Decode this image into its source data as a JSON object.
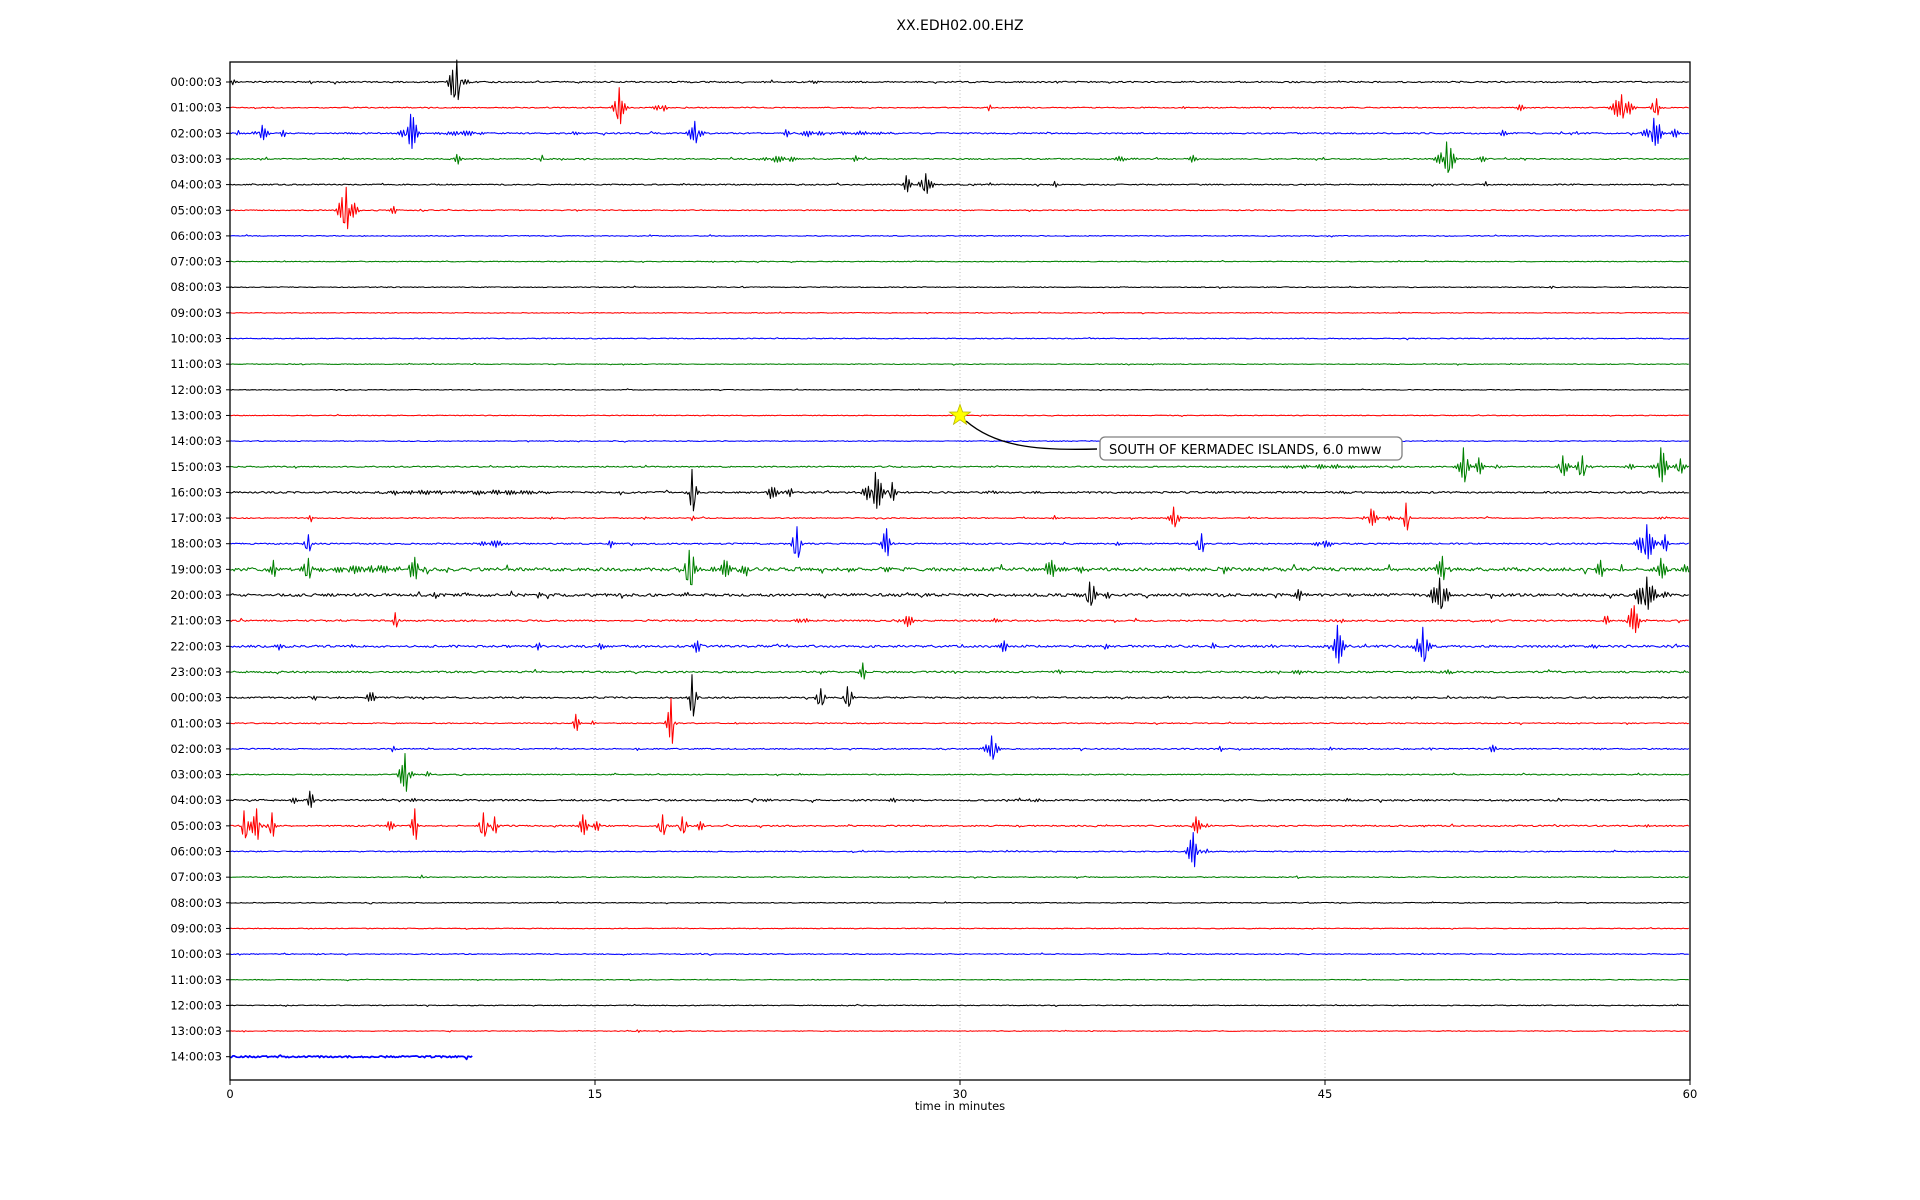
{
  "title": "XX.EDH02.00.EHZ",
  "x_axis": {
    "label": "time in minutes",
    "ticks": [
      0,
      15,
      30,
      45,
      60
    ],
    "range": [
      0,
      60
    ],
    "gridlines_minutes": [
      15,
      30,
      45
    ]
  },
  "annotation": {
    "text": "SOUTH OF KERMADEC ISLANDS, 6.0 mww",
    "marker": "star",
    "marker_color": "#ffff00",
    "row_index": 13,
    "row_label": "13:00:03",
    "minute": 30
  },
  "colors": {
    "trace_cycle": [
      "#000000",
      "#ff0000",
      "#0000ff",
      "#008000"
    ],
    "gridline": "#b0b0b0",
    "annotation_border": "#808080",
    "annotation_fill": "#ffffff",
    "background": "#ffffff"
  },
  "chart_data": {
    "type": "line",
    "plot_kind": "seismogram-helicorder",
    "station_code": "XX.EDH02.00.EHZ",
    "minutes_per_row": 60,
    "grid": "vertical-dotted",
    "legend": "none",
    "rows": [
      {
        "label": "00:00:03",
        "color": "#000000",
        "noise": 0.7,
        "events": [
          [
            0.15,
            5,
            0.08
          ],
          [
            3.3,
            2,
            0.1
          ],
          [
            9.3,
            22,
            0.45
          ],
          [
            24,
            1.5,
            0.3
          ]
        ]
      },
      {
        "label": "01:00:03",
        "color": "#ff0000",
        "noise": 0.5,
        "events": [
          [
            16.0,
            20,
            0.28
          ],
          [
            17.7,
            7,
            0.3
          ],
          [
            18.7,
            3,
            0.1
          ],
          [
            31.2,
            4,
            0.12
          ],
          [
            39.2,
            3,
            0.1
          ],
          [
            53.0,
            4,
            0.2
          ],
          [
            57.2,
            13,
            0.55
          ],
          [
            58.6,
            9,
            0.25
          ]
        ]
      },
      {
        "label": "02:00:03",
        "color": "#0000ff",
        "noise": 0.7,
        "events": [
          [
            0.3,
            6,
            0.12
          ],
          [
            1.3,
            8,
            0.35
          ],
          [
            2.2,
            5,
            0.15
          ],
          [
            7.4,
            19,
            0.45
          ],
          [
            9.5,
            3,
            1.2
          ],
          [
            14.2,
            3,
            0.1
          ],
          [
            19.1,
            12,
            0.35
          ],
          [
            22.9,
            5,
            0.15
          ],
          [
            23.9,
            4,
            0.7
          ],
          [
            26,
            2.5,
            1.5
          ],
          [
            52.3,
            4,
            0.2
          ],
          [
            55.4,
            3,
            0.15
          ],
          [
            58.5,
            15,
            0.45
          ],
          [
            59.4,
            6,
            0.2
          ]
        ]
      },
      {
        "label": "03:00:03",
        "color": "#008000",
        "noise": 0.6,
        "events": [
          [
            1.3,
            2,
            0.1
          ],
          [
            9.35,
            7,
            0.18
          ],
          [
            12.8,
            4,
            0.1
          ],
          [
            22.6,
            4,
            1.0
          ],
          [
            25.7,
            4,
            0.15
          ],
          [
            36.6,
            2.5,
            0.6
          ],
          [
            39.6,
            5,
            0.25
          ],
          [
            50.0,
            17,
            0.45
          ],
          [
            51.5,
            4,
            0.2
          ]
        ]
      },
      {
        "label": "04:00:03",
        "color": "#000000",
        "noise": 0.6,
        "events": [
          [
            27.8,
            9,
            0.25
          ],
          [
            28.6,
            11,
            0.35
          ],
          [
            33.9,
            4,
            0.12
          ],
          [
            51.6,
            3,
            0.1
          ],
          [
            55.2,
            2,
            0.1
          ]
        ]
      },
      {
        "label": "05:00:03",
        "color": "#ff0000",
        "noise": 0.5,
        "events": [
          [
            4.8,
            23,
            0.45
          ],
          [
            6.7,
            5,
            0.18
          ],
          [
            7.8,
            3,
            0.1
          ]
        ]
      },
      {
        "label": "06:00:03",
        "color": "#0000ff",
        "noise": 0.4,
        "events": []
      },
      {
        "label": "07:00:03",
        "color": "#008000",
        "noise": 0.35,
        "events": []
      },
      {
        "label": "08:00:03",
        "color": "#000000",
        "noise": 0.4,
        "events": [
          [
            54.3,
            2,
            0.08
          ]
        ]
      },
      {
        "label": "09:00:03",
        "color": "#ff0000",
        "noise": 0.35,
        "events": []
      },
      {
        "label": "10:00:03",
        "color": "#0000ff",
        "noise": 0.45,
        "events": []
      },
      {
        "label": "11:00:03",
        "color": "#008000",
        "noise": 0.35,
        "events": []
      },
      {
        "label": "12:00:03",
        "color": "#000000",
        "noise": 0.35,
        "events": []
      },
      {
        "label": "13:00:03",
        "color": "#ff0000",
        "noise": 0.35,
        "events": []
      },
      {
        "label": "14:00:03",
        "color": "#0000ff",
        "noise": 0.4,
        "events": []
      },
      {
        "label": "15:00:03",
        "color": "#008000",
        "noise": 0.6,
        "events": [
          [
            45,
            2,
            3
          ],
          [
            50.7,
            19,
            0.3
          ],
          [
            51.3,
            9,
            0.25
          ],
          [
            52.1,
            7,
            0.15
          ],
          [
            54.8,
            11,
            0.3
          ],
          [
            55.6,
            11,
            0.35
          ],
          [
            57.5,
            7,
            0.2
          ],
          [
            58.8,
            19,
            0.35
          ],
          [
            59.6,
            8,
            0.3
          ]
        ]
      },
      {
        "label": "16:00:03",
        "color": "#000000",
        "noise": 0.9,
        "events": [
          [
            8,
            2.5,
            2
          ],
          [
            11,
            3,
            2.5
          ],
          [
            19.0,
            23,
            0.22
          ],
          [
            22.3,
            7,
            0.45
          ],
          [
            23,
            5,
            0.2
          ],
          [
            26.5,
            20,
            0.5
          ],
          [
            27.2,
            10,
            0.2
          ],
          [
            31.3,
            5,
            0.25
          ],
          [
            33,
            3,
            0.2
          ],
          [
            46,
            1.5,
            0.5
          ]
        ]
      },
      {
        "label": "17:00:03",
        "color": "#ff0000",
        "noise": 0.5,
        "events": [
          [
            3.3,
            5,
            0.12
          ],
          [
            13.2,
            3,
            0.1
          ],
          [
            17.0,
            5,
            0.12
          ],
          [
            19.0,
            6,
            0.1
          ],
          [
            33.9,
            3,
            0.1
          ],
          [
            38.8,
            11,
            0.28
          ],
          [
            46.9,
            9,
            0.35
          ],
          [
            47.6,
            5,
            0.2
          ],
          [
            48.3,
            15,
            0.18
          ],
          [
            58.9,
            5,
            0.2
          ]
        ]
      },
      {
        "label": "18:00:03",
        "color": "#0000ff",
        "noise": 0.7,
        "events": [
          [
            3.2,
            9,
            0.18
          ],
          [
            10.8,
            4,
            0.7
          ],
          [
            15.6,
            7,
            0.18
          ],
          [
            23.3,
            17,
            0.28
          ],
          [
            27.0,
            15,
            0.28
          ],
          [
            36.4,
            5,
            0.2
          ],
          [
            39.9,
            10,
            0.22
          ],
          [
            44.9,
            5,
            0.5
          ],
          [
            58.2,
            19,
            0.45
          ],
          [
            59.0,
            9,
            0.2
          ]
        ]
      },
      {
        "label": "19:00:03",
        "color": "#008000",
        "noise": 1.7,
        "events": [
          [
            1.8,
            9,
            0.25
          ],
          [
            3.2,
            11,
            0.28
          ],
          [
            3.8,
            7,
            0.2
          ],
          [
            5,
            4,
            1.2
          ],
          [
            6.3,
            5,
            0.8
          ],
          [
            7.6,
            12,
            0.35
          ],
          [
            18.9,
            19,
            0.45
          ],
          [
            20.3,
            9,
            0.45
          ],
          [
            21.2,
            7,
            0.3
          ],
          [
            27,
            2.5,
            0.3
          ],
          [
            33.8,
            9,
            0.45
          ],
          [
            35.1,
            7,
            0.3
          ],
          [
            40.8,
            7,
            0.28
          ],
          [
            49.8,
            13,
            0.35
          ],
          [
            56.3,
            9,
            0.28
          ],
          [
            58.8,
            11,
            0.35
          ],
          [
            59.8,
            7,
            0.2
          ]
        ]
      },
      {
        "label": "20:00:03",
        "color": "#000000",
        "noise": 1.4,
        "events": [
          [
            8.4,
            4,
            0.18
          ],
          [
            12.7,
            4,
            0.14
          ],
          [
            18.8,
            3,
            0.2
          ],
          [
            35.3,
            13,
            0.45
          ],
          [
            36,
            6,
            0.2
          ],
          [
            44.0,
            7,
            0.28
          ],
          [
            49.7,
            17,
            0.45
          ],
          [
            58.2,
            18,
            0.5
          ],
          [
            59,
            5,
            0.2
          ]
        ]
      },
      {
        "label": "21:00:03",
        "color": "#ff0000",
        "noise": 0.8,
        "events": [
          [
            6.8,
            8,
            0.18
          ],
          [
            23.5,
            6,
            0.35
          ],
          [
            27.8,
            6,
            0.45
          ],
          [
            31.5,
            3,
            0.3
          ],
          [
            45.6,
            5,
            0.2
          ],
          [
            56.6,
            7,
            0.2
          ],
          [
            57.7,
            15,
            0.45
          ]
        ]
      },
      {
        "label": "22:00:03",
        "color": "#0000ff",
        "noise": 1.1,
        "events": [
          [
            2.1,
            6,
            0.2
          ],
          [
            12.7,
            6,
            0.18
          ],
          [
            15.2,
            4,
            0.14
          ],
          [
            19.2,
            7,
            0.2
          ],
          [
            31.8,
            6,
            0.28
          ],
          [
            36.1,
            6,
            0.22
          ],
          [
            40.4,
            4,
            0.2
          ],
          [
            42.9,
            4,
            0.2
          ],
          [
            45.5,
            21,
            0.38
          ],
          [
            49.0,
            19,
            0.38
          ],
          [
            56.2,
            5,
            0.28
          ]
        ]
      },
      {
        "label": "23:00:03",
        "color": "#008000",
        "noise": 0.9,
        "events": [
          [
            26.0,
            9,
            0.18
          ],
          [
            34.1,
            4,
            0.14
          ],
          [
            44,
            2.5,
            0.5
          ],
          [
            50,
            4,
            0.28
          ]
        ]
      },
      {
        "label": "00:00:03",
        "color": "#000000",
        "noise": 0.8,
        "events": [
          [
            3.5,
            4,
            0.14
          ],
          [
            4.4,
            4,
            0.18
          ],
          [
            5.7,
            7,
            0.35
          ],
          [
            14.6,
            2.5,
            0.14
          ],
          [
            19.0,
            23,
            0.22
          ],
          [
            24.3,
            9,
            0.35
          ],
          [
            25.4,
            11,
            0.28
          ]
        ]
      },
      {
        "label": "01:00:03",
        "color": "#ff0000",
        "noise": 0.5,
        "events": [
          [
            14.2,
            9,
            0.22
          ],
          [
            14.9,
            4,
            0.14
          ],
          [
            18.1,
            25,
            0.18
          ],
          [
            20.8,
            3,
            0.1
          ],
          [
            27.2,
            2,
            0.1
          ]
        ]
      },
      {
        "label": "02:00:03",
        "color": "#0000ff",
        "noise": 0.6,
        "events": [
          [
            6.7,
            4,
            0.14
          ],
          [
            8.2,
            3,
            0.1
          ],
          [
            31.3,
            13,
            0.35
          ],
          [
            40.7,
            3,
            0.14
          ],
          [
            45.2,
            3,
            0.1
          ],
          [
            49.4,
            3,
            0.14
          ],
          [
            51.9,
            5,
            0.18
          ],
          [
            56.2,
            2.5,
            0.3
          ]
        ]
      },
      {
        "label": "03:00:03",
        "color": "#008000",
        "noise": 0.5,
        "events": [
          [
            7.2,
            21,
            0.3
          ],
          [
            8.1,
            4,
            0.18
          ]
        ]
      },
      {
        "label": "04:00:03",
        "color": "#000000",
        "noise": 0.8,
        "events": [
          [
            2.6,
            3,
            0.3
          ],
          [
            3.3,
            9,
            0.18
          ],
          [
            7.6,
            2.5,
            0.2
          ],
          [
            22,
            1.5,
            0.3
          ],
          [
            27.3,
            4,
            0.18
          ],
          [
            33,
            2.5,
            0.45
          ],
          [
            45.9,
            2.5,
            0.18
          ]
        ]
      },
      {
        "label": "05:00:03",
        "color": "#ff0000",
        "noise": 0.7,
        "events": [
          [
            0.6,
            15,
            0.22
          ],
          [
            1.1,
            17,
            0.28
          ],
          [
            1.7,
            13,
            0.22
          ],
          [
            6.6,
            5,
            0.28
          ],
          [
            7.6,
            17,
            0.18
          ],
          [
            10.4,
            13,
            0.28
          ],
          [
            10.9,
            9,
            0.18
          ],
          [
            14.5,
            11,
            0.28
          ],
          [
            15.1,
            7,
            0.18
          ],
          [
            17.8,
            11,
            0.28
          ],
          [
            18.6,
            9,
            0.22
          ],
          [
            19.3,
            7,
            0.18
          ],
          [
            36.1,
            3,
            0.14
          ],
          [
            39.7,
            9,
            0.28
          ],
          [
            40.2,
            5,
            0.14
          ],
          [
            49.1,
            3,
            0.1
          ],
          [
            58.3,
            3,
            0.1
          ]
        ]
      },
      {
        "label": "06:00:03",
        "color": "#0000ff",
        "noise": 0.5,
        "events": [
          [
            31.3,
            3,
            0.18
          ],
          [
            39.6,
            19,
            0.35
          ],
          [
            40.2,
            7,
            0.18
          ]
        ]
      },
      {
        "label": "07:00:03",
        "color": "#008000",
        "noise": 0.45,
        "events": [
          [
            7.9,
            3,
            0.12
          ]
        ]
      },
      {
        "label": "08:00:03",
        "color": "#000000",
        "noise": 0.4,
        "events": []
      },
      {
        "label": "09:00:03",
        "color": "#ff0000",
        "noise": 0.35,
        "events": []
      },
      {
        "label": "10:00:03",
        "color": "#0000ff",
        "noise": 0.45,
        "events": []
      },
      {
        "label": "11:00:03",
        "color": "#008000",
        "noise": 0.35,
        "events": []
      },
      {
        "label": "12:00:03",
        "color": "#000000",
        "noise": 0.4,
        "events": []
      },
      {
        "label": "13:00:03",
        "color": "#ff0000",
        "noise": 0.35,
        "events": [
          [
            16.8,
            2.5,
            0.08
          ],
          [
            35.4,
            2,
            0.08
          ]
        ]
      },
      {
        "label": "14:00:03",
        "color": "#0000ff",
        "noise": 0.9,
        "span": [
          0,
          10
        ],
        "thick": true,
        "events": []
      }
    ]
  }
}
